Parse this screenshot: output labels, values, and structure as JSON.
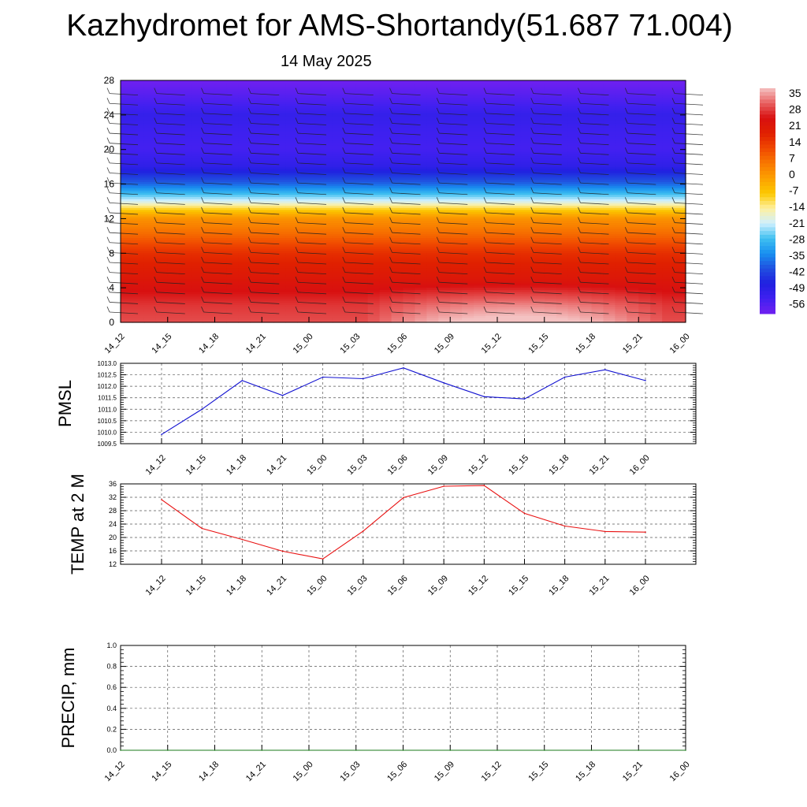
{
  "header": {
    "title": "Kazhydromet for AMS-Shortandy(51.687 71.004)",
    "date": "14 May 2025"
  },
  "colors": {
    "pmsl_line": "#1010d0",
    "temp_line": "#e81010",
    "precip_line": "#1a7a1a",
    "colormap": [
      "#f4c2c2",
      "#e86060",
      "#d81010",
      "#e02000",
      "#f04800",
      "#f87800",
      "#fca000",
      "#fcc800",
      "#fef0a0",
      "#d0f0ff",
      "#40c0f0",
      "#1890f0",
      "#2050e0",
      "#2020e0",
      "#4020f0",
      "#7020f0"
    ]
  },
  "chart_data": [
    {
      "type": "heatmap",
      "name": "temperature-cross-section",
      "categories": [
        "14_12",
        "14_15",
        "14_18",
        "14_21",
        "15_00",
        "15_03",
        "15_06",
        "15_09",
        "15_12",
        "15_15",
        "15_18",
        "15_21",
        "16_00"
      ],
      "y_ticks": [
        "0",
        "4",
        "8",
        "12",
        "16",
        "20",
        "24",
        "28"
      ],
      "ylim": [
        0,
        28
      ],
      "colorbar_labels": [
        "35",
        "28",
        "21",
        "14",
        "7",
        "0",
        "-7",
        "-14",
        "-21",
        "-28",
        "-35",
        "-42",
        "-49",
        "-56"
      ],
      "colorbar_range": [
        -60,
        38
      ],
      "profile": {
        "y": [
          0,
          2,
          4,
          6,
          8,
          10,
          12,
          13,
          14,
          16,
          18,
          20,
          22,
          24,
          26,
          28
        ],
        "value": [
          30,
          28,
          24,
          20,
          16,
          8,
          1,
          -8,
          -20,
          -38,
          -50,
          -54,
          -53,
          -51,
          -56,
          -60
        ]
      },
      "warm_anomaly": {
        "x_center": 8.4,
        "x_half_width": 3.2,
        "y_extent": 5,
        "max_delta": 10
      },
      "wind_barbs": true
    },
    {
      "type": "line",
      "name": "pmsl",
      "ylabel": "PMSL",
      "categories": [
        "14_12",
        "14_15",
        "14_18",
        "14_21",
        "15_00",
        "15_03",
        "15_06",
        "15_09",
        "15_12",
        "15_15",
        "15_18",
        "15_21",
        "16_00"
      ],
      "y_ticks": [
        "1009.5",
        "1010.0",
        "1010.5",
        "1011.0",
        "1011.5",
        "1012.0",
        "1012.5",
        "1013.0"
      ],
      "ylim": [
        1009.5,
        1013.0
      ],
      "values": [
        1009.9,
        1011.0,
        1012.25,
        1011.6,
        1012.4,
        1012.33,
        1012.8,
        1012.15,
        1011.55,
        1011.45,
        1012.4,
        1012.72,
        1012.25
      ],
      "grid": true
    },
    {
      "type": "line",
      "name": "temp",
      "ylabel": "TEMP at 2 M",
      "categories": [
        "14_12",
        "14_15",
        "14_18",
        "14_21",
        "15_00",
        "15_03",
        "15_06",
        "15_09",
        "15_12",
        "15_15",
        "15_18",
        "15_21",
        "16_00"
      ],
      "y_ticks": [
        "12",
        "16",
        "20",
        "24",
        "28",
        "32",
        "36"
      ],
      "ylim": [
        12,
        36
      ],
      "values": [
        31.3,
        22.7,
        19.4,
        15.9,
        13.6,
        21.9,
        31.9,
        35.3,
        35.5,
        27.2,
        23.4,
        21.8,
        21.6
      ],
      "grid": true
    },
    {
      "type": "line",
      "name": "precip",
      "ylabel": "PRECIP, mm",
      "categories": [
        "14_12",
        "14_15",
        "14_18",
        "14_21",
        "15_00",
        "15_03",
        "15_06",
        "15_09",
        "15_12",
        "15_15",
        "15_18",
        "15_21",
        "16_00"
      ],
      "y_ticks": [
        "0.0",
        "0.2",
        "0.4",
        "0.6",
        "0.8",
        "1.0"
      ],
      "ylim": [
        0,
        1
      ],
      "values": [
        0,
        0,
        0,
        0,
        0,
        0,
        0,
        0,
        0,
        0,
        0,
        0,
        0
      ],
      "grid": true
    }
  ]
}
